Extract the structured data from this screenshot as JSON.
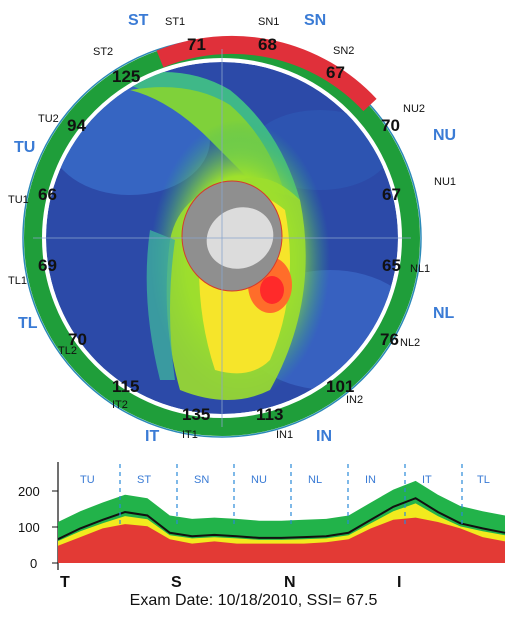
{
  "sectors": {
    "ST": "ST",
    "SN": "SN",
    "TU": "TU",
    "NU": "NU",
    "TL": "TL",
    "NL": "NL",
    "IT": "IT",
    "IN": "IN"
  },
  "clock_labels": {
    "ST1": "ST1",
    "SN1": "SN1",
    "ST2": "ST2",
    "SN2": "SN2",
    "TU2": "TU2",
    "NU2": "NU2",
    "TU1": "TU1",
    "NU1": "NU1",
    "TL1": "TL1",
    "NL1": "NL1",
    "TL2": "TL2",
    "NL2": "NL2",
    "IT2": "IT2",
    "IN2": "IN2",
    "IT1": "IT1",
    "IN1": "IN1"
  },
  "ring_values": {
    "ST1": "71",
    "SN1": "68",
    "SN2": "67",
    "ST2": "125",
    "TU2": "94",
    "NU2": "70",
    "TU1": "66",
    "NU1": "67",
    "TL1": "69",
    "NL1": "65",
    "TL2": "70",
    "NL2": "76",
    "IT2": "115",
    "IN2": "101",
    "IT1": "135",
    "IN1": "113"
  },
  "colors": {
    "ring_normal": "#1f9e3a",
    "ring_abnormal": "#e0303a",
    "sector_label": "#3a7bd5",
    "band_green": "#22b34a",
    "band_yellow": "#f2ea1e",
    "band_red": "#e33a35"
  },
  "chart_data": {
    "type": "area",
    "y_ticks": [
      "200",
      "100",
      "0"
    ],
    "ylim": [
      0,
      250
    ],
    "sector_labels": [
      "TU",
      "ST",
      "SN",
      "NU",
      "NL",
      "IN",
      "IT",
      "TL"
    ],
    "x_labels": [
      "T",
      "S",
      "N",
      "I"
    ],
    "series": [
      {
        "values": [
          55,
          80,
          100,
          118,
          110,
          70,
          62,
          65,
          62,
          58,
          58,
          60,
          62,
          70,
          100,
          130,
          150,
          118,
          92,
          80,
          70
        ]
      },
      {
        "values": [
          40,
          60,
          80,
          90,
          85,
          55,
          45,
          50,
          45,
          45,
          45,
          45,
          48,
          55,
          80,
          100,
          105,
          95,
          80,
          60,
          50
        ]
      }
    ]
  },
  "exam": "Exam Date: 10/18/2010, SSI= 67.5"
}
